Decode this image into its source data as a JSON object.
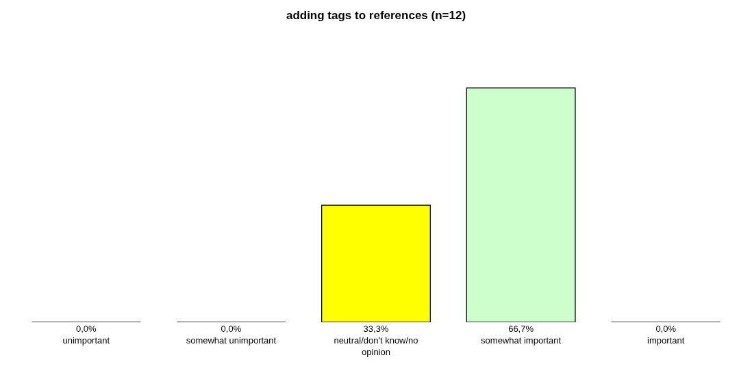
{
  "chart_data": {
    "type": "bar",
    "title": "adding tags to references (n=12)",
    "categories": [
      "unimportant",
      "somewhat unimportant",
      "neutral/don't know/no opinion",
      "somewhat important",
      "important"
    ],
    "values": [
      0,
      0,
      33.3,
      66.7,
      0
    ],
    "value_labels": [
      "0,0%",
      "0,0%",
      "33,3%",
      "66,7%",
      "0,0%"
    ],
    "colors": [
      "#000000",
      "#000000",
      "#ffff00",
      "#ccffcc",
      "#000000"
    ],
    "legend": false
  }
}
